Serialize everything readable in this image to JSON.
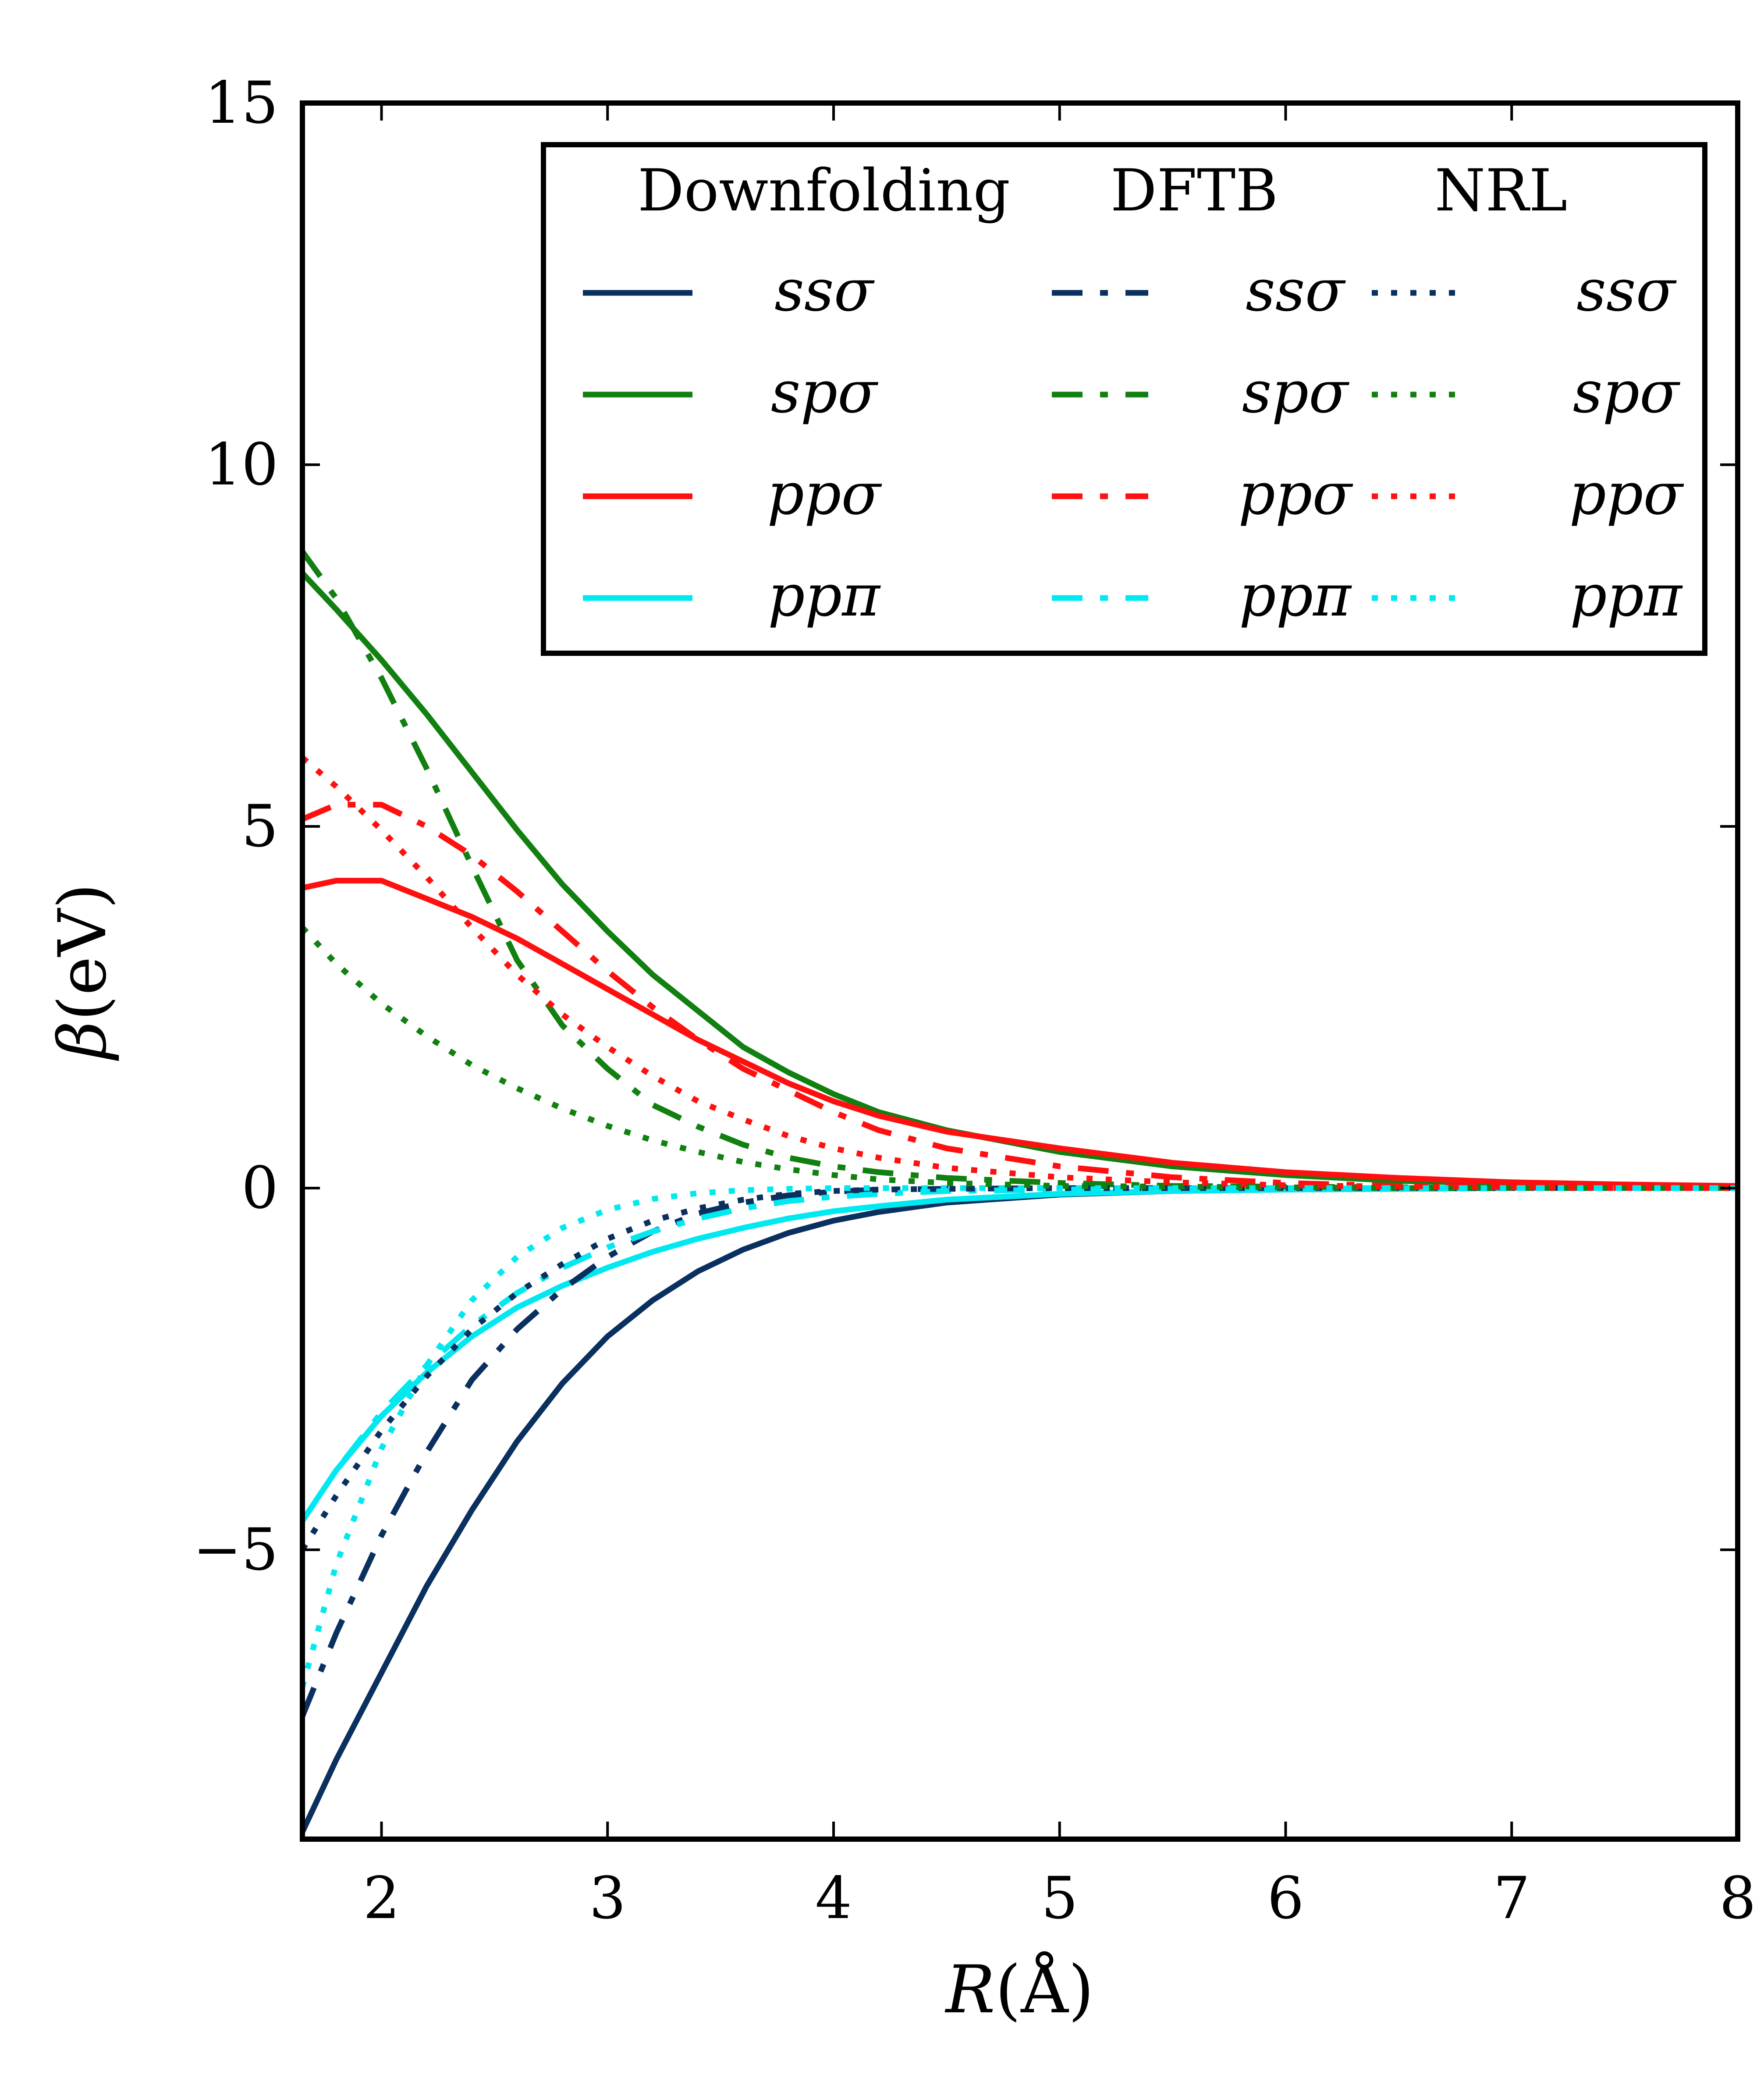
{
  "chart_data": {
    "type": "line",
    "xlabel_var": "R",
    "xlabel_unit": "(Å)",
    "ylabel_var": "β",
    "ylabel_unit": "(eV)",
    "xlim": [
      1.65,
      8
    ],
    "ylim": [
      -9,
      15
    ],
    "xticks": [
      2,
      3,
      4,
      5,
      6,
      7,
      8
    ],
    "yticks": [
      -5,
      0,
      5,
      10,
      15
    ],
    "xtick_labels": [
      "2",
      "3",
      "4",
      "5",
      "6",
      "7",
      "8"
    ],
    "ytick_labels": [
      "−5",
      "0",
      "5",
      "10",
      "15"
    ],
    "grid": false,
    "legend": {
      "placement": "top-right",
      "groups": [
        "Downfolding",
        "DFTB",
        "NRL"
      ],
      "entries": [
        "ssσ",
        "spσ",
        "ppσ",
        "ppπ"
      ]
    },
    "colors": {
      "ssσ": "#0a3060",
      "spσ": "#118011",
      "ppσ": "#ff1010",
      "ppπ": "#00e8f0"
    },
    "x": [
      1.65,
      1.8,
      2.0,
      2.2,
      2.4,
      2.6,
      2.8,
      3.0,
      3.2,
      3.4,
      3.6,
      3.8,
      4.0,
      4.2,
      4.5,
      5.0,
      5.5,
      6.0,
      6.5,
      7.0,
      7.5,
      8.0
    ],
    "series": [
      {
        "name": "ssσ",
        "method": "Downfolding",
        "style": "solid",
        "values": [
          -8.9,
          -7.9,
          -6.7,
          -5.5,
          -4.45,
          -3.5,
          -2.7,
          -2.05,
          -1.55,
          -1.15,
          -0.85,
          -0.62,
          -0.45,
          -0.33,
          -0.2,
          -0.09,
          -0.04,
          -0.02,
          -0.01,
          0.0,
          0.0,
          0.0
        ]
      },
      {
        "name": "spσ",
        "method": "Downfolding",
        "style": "solid",
        "values": [
          8.5,
          8.0,
          7.3,
          6.55,
          5.75,
          4.95,
          4.2,
          3.55,
          2.95,
          2.45,
          1.95,
          1.6,
          1.3,
          1.05,
          0.8,
          0.5,
          0.3,
          0.18,
          0.1,
          0.06,
          0.03,
          0.02
        ]
      },
      {
        "name": "ppσ",
        "method": "Downfolding",
        "style": "solid",
        "values": [
          4.15,
          4.25,
          4.25,
          4.0,
          3.75,
          3.45,
          3.1,
          2.75,
          2.4,
          2.05,
          1.75,
          1.45,
          1.2,
          1.0,
          0.78,
          0.55,
          0.35,
          0.22,
          0.14,
          0.08,
          0.05,
          0.03
        ]
      },
      {
        "name": "ppπ",
        "method": "Downfolding",
        "style": "solid",
        "values": [
          -4.6,
          -3.9,
          -3.15,
          -2.55,
          -2.05,
          -1.65,
          -1.35,
          -1.1,
          -0.88,
          -0.7,
          -0.55,
          -0.42,
          -0.32,
          -0.25,
          -0.16,
          -0.08,
          -0.04,
          -0.02,
          -0.01,
          0.0,
          0.0,
          0.0
        ]
      },
      {
        "name": "ssσ",
        "method": "DFTB",
        "style": "dashdot",
        "values": [
          -7.3,
          -6.15,
          -4.8,
          -3.65,
          -2.65,
          -1.95,
          -1.4,
          -0.95,
          -0.6,
          -0.35,
          -0.2,
          -0.1,
          -0.05,
          -0.02,
          -0.01,
          0.0,
          0.0,
          0.0,
          0.0,
          0.0,
          0.0,
          0.0
        ]
      },
      {
        "name": "spσ",
        "method": "DFTB",
        "style": "dashdot",
        "values": [
          8.8,
          8.15,
          7.05,
          5.8,
          4.45,
          3.15,
          2.25,
          1.65,
          1.15,
          0.85,
          0.6,
          0.42,
          0.3,
          0.22,
          0.14,
          0.07,
          0.03,
          0.02,
          0.01,
          0.0,
          0.0,
          0.0
        ]
      },
      {
        "name": "ppσ",
        "method": "DFTB",
        "style": "dashdot",
        "values": [
          5.1,
          5.3,
          5.3,
          5.0,
          4.6,
          4.1,
          3.55,
          3.0,
          2.5,
          2.05,
          1.65,
          1.35,
          1.05,
          0.8,
          0.55,
          0.3,
          0.15,
          0.07,
          0.03,
          0.01,
          0.0,
          0.0
        ]
      },
      {
        "name": "ppπ",
        "method": "DFTB",
        "style": "dashdot",
        "values": [
          -4.6,
          -3.9,
          -3.1,
          -2.45,
          -1.9,
          -1.45,
          -1.1,
          -0.82,
          -0.6,
          -0.42,
          -0.28,
          -0.18,
          -0.12,
          -0.08,
          -0.04,
          -0.02,
          -0.01,
          0.0,
          0.0,
          0.0,
          0.0,
          0.0
        ]
      },
      {
        "name": "ssσ",
        "method": "NRL",
        "style": "dotted",
        "values": [
          -5.0,
          -4.25,
          -3.35,
          -2.6,
          -1.95,
          -1.45,
          -1.05,
          -0.7,
          -0.45,
          -0.28,
          -0.16,
          -0.08,
          -0.04,
          -0.02,
          -0.01,
          0.0,
          0.0,
          0.0,
          0.0,
          0.0,
          0.0,
          0.0
        ]
      },
      {
        "name": "spσ",
        "method": "NRL",
        "style": "dotted",
        "values": [
          3.6,
          3.1,
          2.55,
          2.1,
          1.7,
          1.38,
          1.1,
          0.86,
          0.66,
          0.5,
          0.36,
          0.26,
          0.18,
          0.12,
          0.07,
          0.03,
          0.02,
          0.01,
          0.0,
          0.0,
          0.0,
          0.0
        ]
      },
      {
        "name": "ppσ",
        "method": "NRL",
        "style": "dotted",
        "values": [
          5.95,
          5.55,
          4.95,
          4.3,
          3.6,
          2.95,
          2.4,
          1.95,
          1.55,
          1.2,
          0.95,
          0.72,
          0.55,
          0.42,
          0.28,
          0.15,
          0.08,
          0.04,
          0.02,
          0.01,
          0.0,
          0.0
        ]
      },
      {
        "name": "ppπ",
        "method": "NRL",
        "style": "dotted",
        "values": [
          -6.9,
          -5.2,
          -3.6,
          -2.45,
          -1.55,
          -0.95,
          -0.55,
          -0.3,
          -0.15,
          -0.07,
          -0.03,
          -0.01,
          0.0,
          0.0,
          0.0,
          0.0,
          0.0,
          0.0,
          0.0,
          0.0,
          0.0,
          0.0
        ]
      }
    ]
  }
}
